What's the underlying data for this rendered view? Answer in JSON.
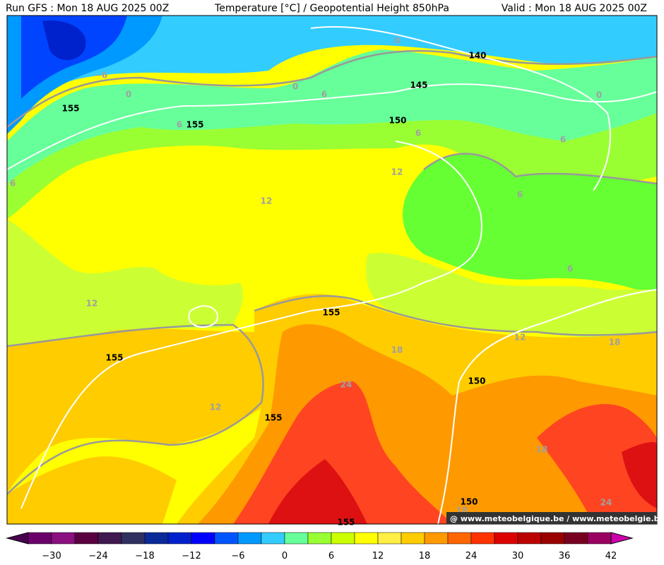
{
  "header": {
    "run": "Run GFS : Mon 18 AUG 2025 00Z",
    "title": "Temperature [°C] / Geopotential Height 850hPa",
    "valid": "Valid : Mon 18 AUG 2025 00Z"
  },
  "contour_labels": [
    "0",
    "140",
    "−6",
    "0",
    "155",
    "0",
    "6",
    "145",
    "0",
    "150",
    "6",
    "155",
    "6",
    "6",
    "12",
    "6",
    "6",
    "12",
    "6",
    "12",
    "155",
    "12",
    "18",
    "18",
    "155",
    "24",
    "150",
    "12",
    "155",
    "18",
    "150",
    "18",
    "24",
    "155"
  ],
  "colorbar_labels": [
    "−30",
    "−24",
    "−18",
    "−12",
    "−6",
    "0",
    "6",
    "12",
    "18",
    "24",
    "30",
    "36",
    "42"
  ],
  "watermark": "@ www.meteobelgique.be / www.meteobelgie.be"
}
